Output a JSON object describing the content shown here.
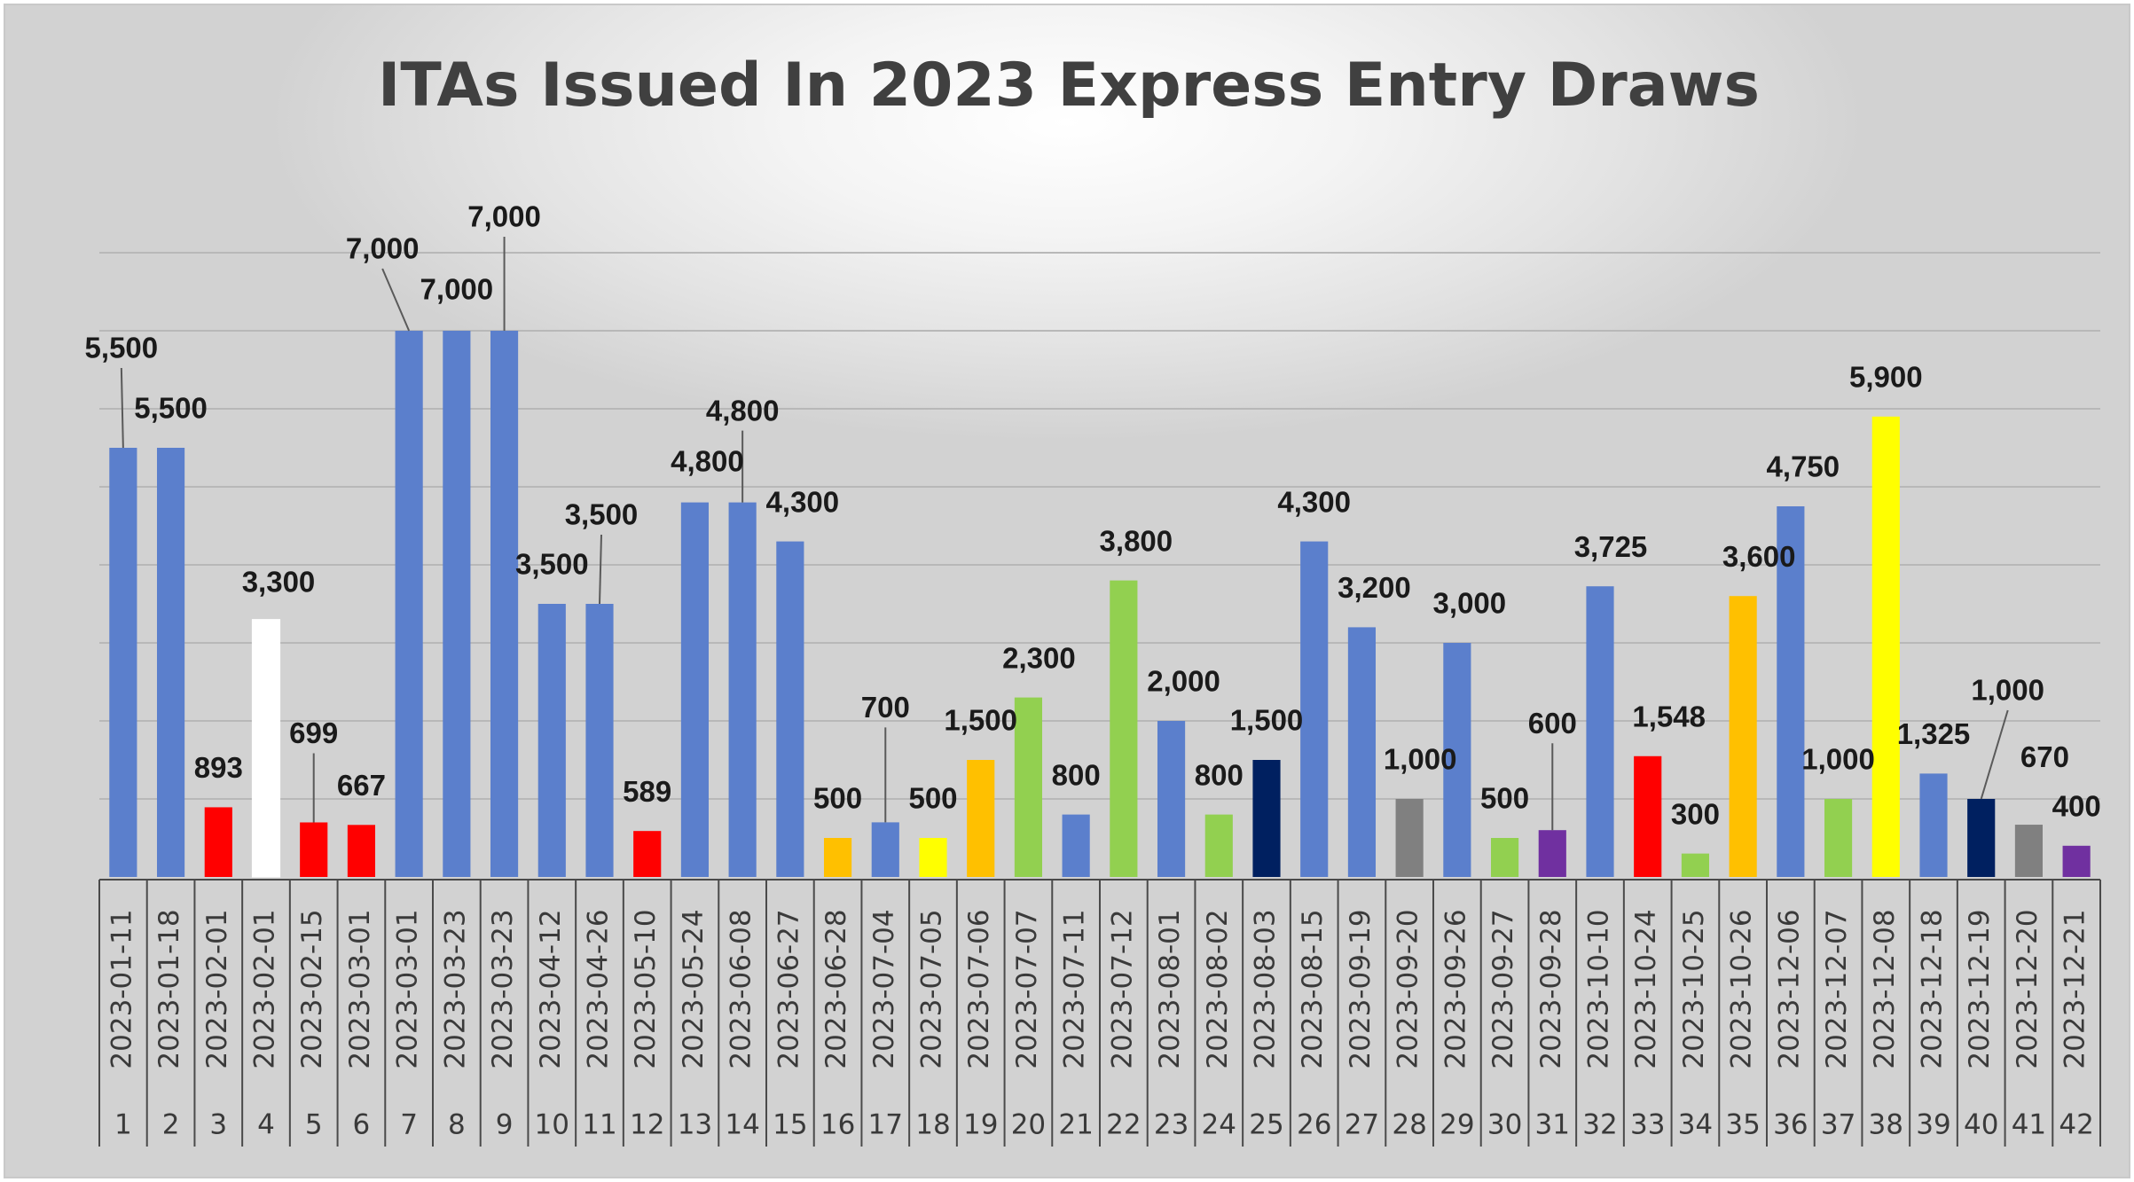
{
  "chart_data": {
    "type": "bar",
    "title": "ITAs Issued In 2023 Express Entry Draws",
    "xlabel": "",
    "ylabel": "",
    "ylim": [
      0,
      8000
    ],
    "y_gridlines": [
      1000,
      2000,
      3000,
      4000,
      5000,
      6000,
      7000,
      8000
    ],
    "grid": true,
    "legend": "none",
    "data": [
      {
        "index": "1",
        "date": "2023-01-11",
        "value": 5500,
        "label": "5,500",
        "color": "#5b7fcc"
      },
      {
        "index": "2",
        "date": "2023-01-18",
        "value": 5500,
        "label": "5,500",
        "color": "#5b7fcc"
      },
      {
        "index": "3",
        "date": "2023-02-01",
        "value": 893,
        "label": "893",
        "color": "#ff0000"
      },
      {
        "index": "4",
        "date": "2023-02-01",
        "value": 3300,
        "label": "3,300",
        "color": "#ffffff"
      },
      {
        "index": "5",
        "date": "2023-02-15",
        "value": 699,
        "label": "699",
        "color": "#ff0000"
      },
      {
        "index": "6",
        "date": "2023-03-01",
        "value": 667,
        "label": "667",
        "color": "#ff0000"
      },
      {
        "index": "7",
        "date": "2023-03-01",
        "value": 7000,
        "label": "7,000",
        "color": "#5b7fcc"
      },
      {
        "index": "8",
        "date": "2023-03-23",
        "value": 7000,
        "label": "7,000",
        "color": "#5b7fcc"
      },
      {
        "index": "9",
        "date": "2023-03-23",
        "value": 7000,
        "label": "7,000",
        "color": "#5b7fcc"
      },
      {
        "index": "10",
        "date": "2023-04-12",
        "value": 3500,
        "label": "3,500",
        "color": "#5b7fcc"
      },
      {
        "index": "11",
        "date": "2023-04-26",
        "value": 3500,
        "label": "3,500",
        "color": "#5b7fcc"
      },
      {
        "index": "12",
        "date": "2023-05-10",
        "value": 589,
        "label": "589",
        "color": "#ff0000"
      },
      {
        "index": "13",
        "date": "2023-05-24",
        "value": 4800,
        "label": "4,800",
        "color": "#5b7fcc"
      },
      {
        "index": "14",
        "date": "2023-06-08",
        "value": 4800,
        "label": "4,800",
        "color": "#5b7fcc"
      },
      {
        "index": "15",
        "date": "2023-06-27",
        "value": 4300,
        "label": "4,300",
        "color": "#5b7fcc"
      },
      {
        "index": "16",
        "date": "2023-06-28",
        "value": 500,
        "label": "500",
        "color": "#ffc000"
      },
      {
        "index": "17",
        "date": "2023-07-04",
        "value": 700,
        "label": "700",
        "color": "#5b7fcc"
      },
      {
        "index": "18",
        "date": "2023-07-05",
        "value": 500,
        "label": "500",
        "color": "#ffff00"
      },
      {
        "index": "19",
        "date": "2023-07-06",
        "value": 1500,
        "label": "1,500",
        "color": "#ffc000"
      },
      {
        "index": "20",
        "date": "2023-07-07",
        "value": 2300,
        "label": "2,300",
        "color": "#92d050"
      },
      {
        "index": "21",
        "date": "2023-07-11",
        "value": 800,
        "label": "800",
        "color": "#5b7fcc"
      },
      {
        "index": "22",
        "date": "2023-07-12",
        "value": 3800,
        "label": "3,800",
        "color": "#92d050"
      },
      {
        "index": "23",
        "date": "2023-08-01",
        "value": 2000,
        "label": "2,000",
        "color": "#5b7fcc"
      },
      {
        "index": "24",
        "date": "2023-08-02",
        "value": 800,
        "label": "800",
        "color": "#92d050"
      },
      {
        "index": "25",
        "date": "2023-08-03",
        "value": 1500,
        "label": "1,500",
        "color": "#002060"
      },
      {
        "index": "26",
        "date": "2023-08-15",
        "value": 4300,
        "label": "4,300",
        "color": "#5b7fcc"
      },
      {
        "index": "27",
        "date": "2023-09-19",
        "value": 3200,
        "label": "3,200",
        "color": "#5b7fcc"
      },
      {
        "index": "28",
        "date": "2023-09-20",
        "value": 1000,
        "label": "1,000",
        "color": "#808080"
      },
      {
        "index": "29",
        "date": "2023-09-26",
        "value": 3000,
        "label": "3,000",
        "color": "#5b7fcc"
      },
      {
        "index": "30",
        "date": "2023-09-27",
        "value": 500,
        "label": "500",
        "color": "#92d050"
      },
      {
        "index": "31",
        "date": "2023-09-28",
        "value": 600,
        "label": "600",
        "color": "#7030a0"
      },
      {
        "index": "32",
        "date": "2023-10-10",
        "value": 3725,
        "label": "3,725",
        "color": "#5b7fcc"
      },
      {
        "index": "33",
        "date": "2023-10-24",
        "value": 1548,
        "label": "1,548",
        "color": "#ff0000"
      },
      {
        "index": "34",
        "date": "2023-10-25",
        "value": 300,
        "label": "300",
        "color": "#92d050"
      },
      {
        "index": "35",
        "date": "2023-10-26",
        "value": 3600,
        "label": "3,600",
        "color": "#ffc000"
      },
      {
        "index": "36",
        "date": "2023-12-06",
        "value": 4750,
        "label": "4,750",
        "color": "#5b7fcc"
      },
      {
        "index": "37",
        "date": "2023-12-07",
        "value": 1000,
        "label": "1,000",
        "color": "#92d050"
      },
      {
        "index": "38",
        "date": "2023-12-08",
        "value": 5900,
        "label": "5,900",
        "color": "#ffff00"
      },
      {
        "index": "39",
        "date": "2023-12-18",
        "value": 1325,
        "label": "1,325",
        "color": "#5b7fcc"
      },
      {
        "index": "40",
        "date": "2023-12-19",
        "value": 1000,
        "label": "1,000",
        "color": "#002060"
      },
      {
        "index": "41",
        "date": "2023-12-20",
        "value": 670,
        "label": "670",
        "color": "#808080"
      },
      {
        "index": "42",
        "date": "2023-12-21",
        "value": 400,
        "label": "400",
        "color": "#7030a0"
      }
    ]
  }
}
